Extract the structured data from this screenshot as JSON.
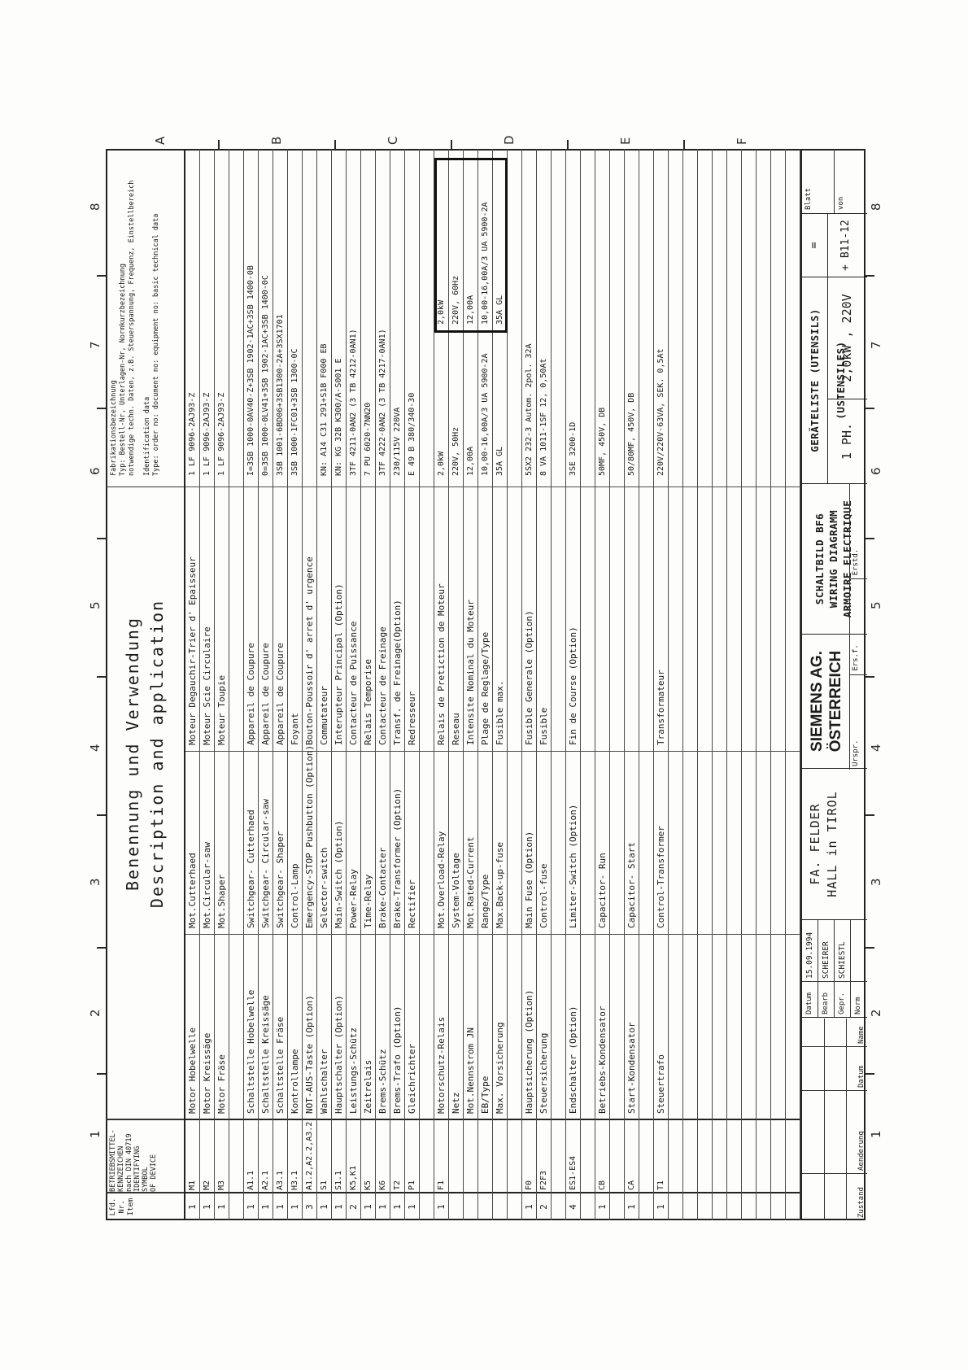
{
  "sheet": {
    "zones_top": [
      "1",
      "2",
      "3",
      "4",
      "5",
      "6",
      "7",
      "8"
    ],
    "zones_bottom": [
      "1",
      "2",
      "3",
      "4",
      "5",
      "6",
      "7",
      "8"
    ],
    "zones_right": [
      "A",
      "B",
      "C",
      "D",
      "E",
      "F"
    ]
  },
  "table": {
    "header": {
      "lfd_lines": [
        "Lfd.",
        "Nr.",
        "",
        "Item"
      ],
      "kennz_lines": [
        "BETRIEBSMITTEL-",
        "KENNZEICHEN",
        "nach DIN 40719",
        "IDENTIFYING",
        "SYMBOL",
        "OF DEVICE"
      ],
      "benennung_de": "Benennung und Verwendung",
      "benennung_en": "Description and application",
      "ident_lines_de": [
        "Fabrikationsbezeichnung",
        "Typ: Bestell-Nr, Unterlagen-Nr, Normkurzbezeichnung",
        "notwendige techn. Daten, z.B. Steuerspannung, Frequenz, Einstellbereich"
      ],
      "ident_lines_en": [
        "Identification data",
        "Type: order no: document no: equipment no: basic technical data"
      ]
    },
    "rows": [
      {
        "q": "1",
        "sym": "M1",
        "de": "Motor Hobelwelle",
        "en": "Mot.Cutterhaed",
        "fr": "Moteur Degauchir-Trier d' Epaisseur",
        "id": "1 LF 9096-2AJ93-Z"
      },
      {
        "q": "1",
        "sym": "M2",
        "de": "Motor Kreissäge",
        "en": "Mot.Circular-saw",
        "fr": "Moteur Scie Circulaire",
        "id": "1 LF 9096-2AJ93-Z"
      },
      {
        "q": "1",
        "sym": "M3",
        "de": "Motor Fräse",
        "en": "Mot.Shaper",
        "fr": "Moteur Toupie",
        "id": "1 LF 9096-2AJ93-Z"
      },
      {},
      {
        "q": "1",
        "sym": "A1.1",
        "de": "Schaltstelle Hobelwelle",
        "en": "Switchgear- Cutterhaed",
        "fr": "Appareil de Coupure",
        "id": "I=3SB 1000-0AV40-Z+3SB 1902-1AC+3SB 1400-0B"
      },
      {
        "q": "1",
        "sym": "A2.1",
        "de": "Schaltstelle Kreissäge",
        "en": "Switchgear- Circular-saw",
        "fr": "Appareil de Coupure",
        "id": "0=3SB 1000-0LV41+3SB 1902-1AC+3SB 1400-0C"
      },
      {
        "q": "1",
        "sym": "A3.1",
        "de": "Schaltstelle Fräse",
        "en": "Switchgear- Shaper",
        "fr": "Appareil de Coupure",
        "id": "3SB 1001-6BD06+3SB1300-2A+3SX1701"
      },
      {
        "q": "1",
        "sym": "H3.1",
        "de": "Kontrollampe",
        "en": "Control-Lamp",
        "fr": "Foyant",
        "id": "3SB 1000-1FC01+3SB 1300-0C"
      },
      {
        "q": "3",
        "sym": "A1.2,A2.2,A3.2",
        "de": "NOT-AUS-Taste (Option)",
        "en": "Emergency-STOP Pushbutton (Option)",
        "fr": "Bouton-Poussoir d' arret d' urgence",
        "id": ""
      },
      {
        "q": "1",
        "sym": "S1",
        "de": "Wahlschalter",
        "en": "Selector-switch",
        "fr": "Commutateur",
        "id": "KN: A14 C31 291+S1B F000 EB"
      },
      {
        "q": "1",
        "sym": "S1.1",
        "de": "Hauptschalter (Option)",
        "en": "Main-Switch (Option)",
        "fr": "Interupteur Principal (Option)",
        "id": "KN: KG 32B K300/A-S001 E"
      },
      {
        "q": "2",
        "sym": "K5,K1",
        "de": "Leistungs-Schütz",
        "en": "Power-Relay",
        "fr": "Contacteur de Puissance",
        "id": "3TF 4211-0AN2  (3 TB 4212-0AN1)"
      },
      {
        "q": "1",
        "sym": "K5",
        "de": "Zeitrelais",
        "en": "Time-Relay",
        "fr": "Relais Temporise",
        "id": "7 PU 6020-7NN20"
      },
      {
        "q": "1",
        "sym": "K6",
        "de": "Brems-Schütz",
        "en": "Brake-Contacter",
        "fr": "Contacteur de Freinage",
        "id": "3TF 4222-0AN2  (3 TB 4217-0AN1)"
      },
      {
        "q": "1",
        "sym": "T2",
        "de": "Brems-Trafo (Option)",
        "en": "Brake-Transformer (Option)",
        "fr": "Transf. de Freinage(Option)",
        "id": "230/115V  220VA"
      },
      {
        "q": "1",
        "sym": "P1",
        "de": "Gleichrichter",
        "en": "Rectifier",
        "fr": "Redresseur",
        "id": "E 49 B 380/340-30"
      },
      {},
      {
        "q": "1",
        "sym": "F1",
        "de": "Motorschutz-Relais",
        "en": "Mot.Overload-Relay",
        "fr": "Relais de Pretiction de Moteur",
        "id": "2,0kW",
        "id2": "2,0kW"
      },
      {
        "q": "",
        "sym": "",
        "de": "Netz",
        "en": "System-Voltage",
        "fr": "Reseau",
        "id": "220V, 50Hz",
        "id2": "220V, 60Hz"
      },
      {
        "q": "",
        "sym": "",
        "de": "Mot.Nennstrom JN",
        "en": "Mot.Rated-Current",
        "fr": "Intensite Nominal du Moteur",
        "id": "12,00A",
        "id2": "12,00A"
      },
      {
        "q": "",
        "sym": "",
        "de": "EB/Type",
        "en": "Range/Type",
        "fr": "Plage de Reglage/Type",
        "id": "10,00-16,00A/3 UA 5900-2A",
        "id2": "10,00-16,00A/3 UA 5900-2A"
      },
      {
        "q": "",
        "sym": "",
        "de": "Max. Vorsicherung",
        "en": "Max.Back-up-fuse",
        "fr": "Fusible max.",
        "id": "35A GL",
        "id2": "35A GL"
      },
      {},
      {
        "q": "1",
        "sym": "F0",
        "de": "Hauptsicherung (Option)",
        "en": "Main Fuse (Option)",
        "fr": "Fusible Generale (Option)",
        "id": "5SX2 232-3  Autom. 2pol. 32A"
      },
      {
        "q": "2",
        "sym": "F2F3",
        "de": "Steuersicherung",
        "en": "Control-fuse",
        "fr": "Fusible",
        "id": "8 VA 1011-1SF 12, 0,50At"
      },
      {},
      {
        "q": "4",
        "sym": "ES1-ES4",
        "de": "Endschalter (Option)",
        "en": "Limiter-Switch (Option)",
        "fr": "Fin de Course (Option)",
        "id": "3SE 3200-1D"
      },
      {},
      {
        "q": "1",
        "sym": "CB",
        "de": "Betriebs-Kondensator",
        "en": "Capacitor- Run",
        "fr": "",
        "id": "50MF, 450V, DB"
      },
      {},
      {
        "q": "1",
        "sym": "CA",
        "de": "Start-Kondensator",
        "en": "Capacitor- Start",
        "fr": "",
        "id": "50/80MF, 450V, DB"
      },
      {},
      {
        "q": "1",
        "sym": "T1",
        "de": "Steuertrafo",
        "en": "Control-Transformer",
        "fr": "Transformateur",
        "id": "220V/220V-63VA, SEK. 0,5At"
      },
      {},
      {},
      {},
      {},
      {},
      {},
      {},
      {},
      {}
    ]
  },
  "title_block": {
    "approval": {
      "datum_label": "Datum",
      "datum": "15.09.1994",
      "bearb_label": "Bearb",
      "bearb": "SCHEIRER",
      "gepr_label": "Gepr.",
      "gepr": "SCHIESTL",
      "norm_label": "Norm",
      "norm": ""
    },
    "revision_labels": [
      "Zustand",
      "Aenderung",
      "Datum",
      "Name"
    ],
    "origin_labels": [
      "Urspr.",
      "Ers.f.",
      "Erstd."
    ],
    "customer": [
      "FA. FELDER",
      "HALL in TIROL"
    ],
    "company": [
      "SIEMENS AG.",
      "ÖSTERREICH"
    ],
    "drawing": [
      "SCHALTBILD BF6",
      "WIRING DIAGRAMM",
      "ARMOIRE ELECTRIQUE"
    ],
    "doc_type": "GERÄTELISTE (UTENSILS) (USTENSILES)",
    "phase": "1 PH.",
    "rating": "2,0kW , 220V",
    "ref_eq": "=",
    "ref_loc": "+ B11-12",
    "sheet_label": "Blatt",
    "of_label": "von"
  }
}
